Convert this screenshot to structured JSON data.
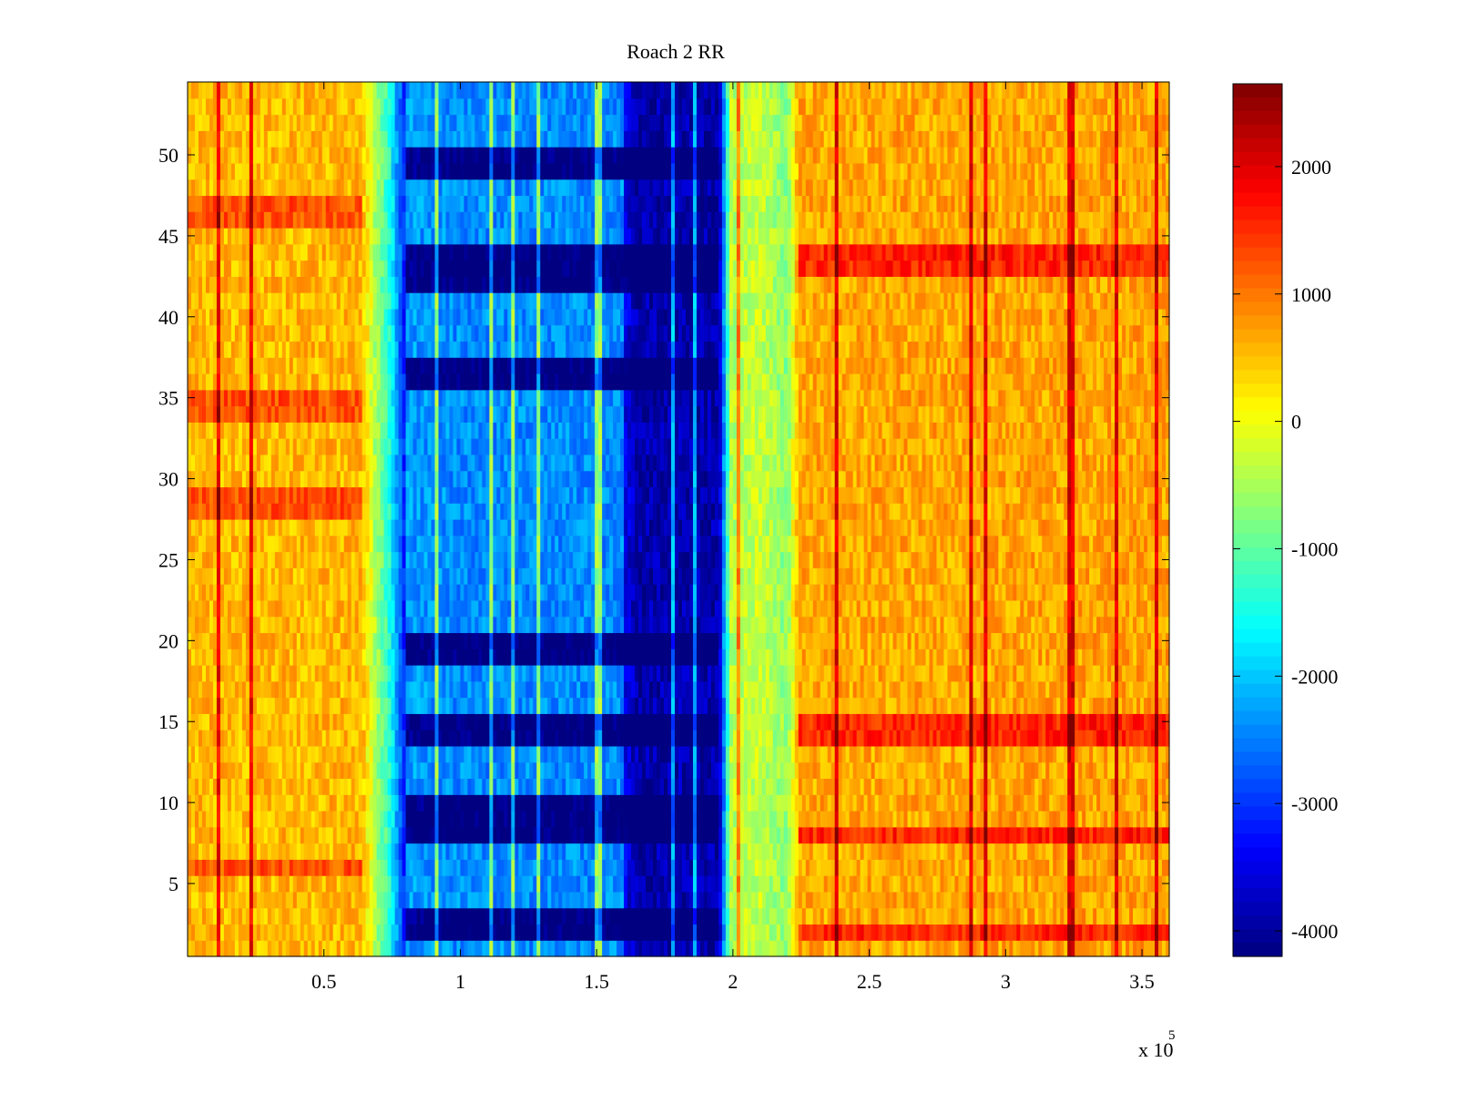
{
  "chart_data": {
    "type": "heatmap",
    "title": "Roach 2 RR",
    "xlabel": "",
    "ylabel": "",
    "x_multiplier_label": "x 10",
    "x_multiplier_exponent": "5",
    "xlim": [
      0.0,
      3.6
    ],
    "ylim": [
      0.5,
      54.5
    ],
    "x_ticks": [
      0.5,
      1,
      1.5,
      2,
      2.5,
      3,
      3.5
    ],
    "x_tick_labels": [
      "0.5",
      "1",
      "1.5",
      "2",
      "2.5",
      "3",
      "3.5"
    ],
    "y_ticks": [
      5,
      10,
      15,
      20,
      25,
      30,
      35,
      40,
      45,
      50
    ],
    "y_tick_labels": [
      "5",
      "10",
      "15",
      "20",
      "25",
      "30",
      "35",
      "40",
      "45",
      "50"
    ],
    "rows": 54,
    "colormap": "jet",
    "clim": [
      -4200,
      2650
    ],
    "colorbar": {
      "ticks": [
        2000,
        1000,
        0,
        -1000,
        -2000,
        -3000,
        -4000
      ],
      "tick_labels": [
        "2000",
        "1000",
        "0",
        "-1000",
        "-2000",
        "-3000",
        "-4000"
      ]
    },
    "column_profile": [
      {
        "x": 0.0,
        "value": 550
      },
      {
        "x": 0.64,
        "value": 550
      },
      {
        "x": 0.68,
        "value": -300
      },
      {
        "x": 0.74,
        "value": -1400
      },
      {
        "x": 0.8,
        "value": -3300
      },
      {
        "x": 1.0,
        "value": -3400
      },
      {
        "x": 1.6,
        "value": -3400
      },
      {
        "x": 1.65,
        "value": -3900
      },
      {
        "x": 1.95,
        "value": -3900
      },
      {
        "x": 1.99,
        "value": -400
      },
      {
        "x": 2.1,
        "value": -300
      },
      {
        "x": 2.2,
        "value": -700
      },
      {
        "x": 2.24,
        "value": 650
      },
      {
        "x": 3.6,
        "value": 700
      }
    ],
    "highlight_rows": {
      "left_region": [
        6,
        28,
        29,
        34,
        35,
        46,
        47
      ],
      "right_region_hot": [
        2,
        8,
        14,
        15,
        43,
        44
      ],
      "center_dark": [
        2,
        3,
        8,
        9,
        10,
        14,
        15,
        19,
        20,
        36,
        37,
        42,
        43,
        44,
        49,
        50
      ]
    },
    "grid": false,
    "legend": "colorbar-right"
  }
}
